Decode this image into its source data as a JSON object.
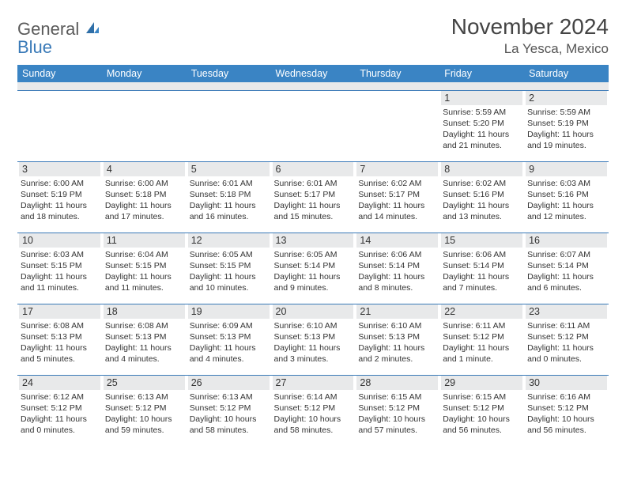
{
  "brand": {
    "word1": "General",
    "word2": "Blue"
  },
  "title": "November 2024",
  "location": "La Yesca, Mexico",
  "colors": {
    "header_bg": "#3a84c4",
    "header_fg": "#ffffff",
    "rule": "#3a7ab8",
    "daynum_bg": "#e8e9ea",
    "text": "#333333",
    "brand_gray": "#5a5a5a",
    "brand_blue": "#3a7ab8"
  },
  "day_names": [
    "Sunday",
    "Monday",
    "Tuesday",
    "Wednesday",
    "Thursday",
    "Friday",
    "Saturday"
  ],
  "weeks": [
    [
      null,
      null,
      null,
      null,
      null,
      {
        "n": "1",
        "sr": "Sunrise: 5:59 AM",
        "ss": "Sunset: 5:20 PM",
        "dl": "Daylight: 11 hours and 21 minutes."
      },
      {
        "n": "2",
        "sr": "Sunrise: 5:59 AM",
        "ss": "Sunset: 5:19 PM",
        "dl": "Daylight: 11 hours and 19 minutes."
      }
    ],
    [
      {
        "n": "3",
        "sr": "Sunrise: 6:00 AM",
        "ss": "Sunset: 5:19 PM",
        "dl": "Daylight: 11 hours and 18 minutes."
      },
      {
        "n": "4",
        "sr": "Sunrise: 6:00 AM",
        "ss": "Sunset: 5:18 PM",
        "dl": "Daylight: 11 hours and 17 minutes."
      },
      {
        "n": "5",
        "sr": "Sunrise: 6:01 AM",
        "ss": "Sunset: 5:18 PM",
        "dl": "Daylight: 11 hours and 16 minutes."
      },
      {
        "n": "6",
        "sr": "Sunrise: 6:01 AM",
        "ss": "Sunset: 5:17 PM",
        "dl": "Daylight: 11 hours and 15 minutes."
      },
      {
        "n": "7",
        "sr": "Sunrise: 6:02 AM",
        "ss": "Sunset: 5:17 PM",
        "dl": "Daylight: 11 hours and 14 minutes."
      },
      {
        "n": "8",
        "sr": "Sunrise: 6:02 AM",
        "ss": "Sunset: 5:16 PM",
        "dl": "Daylight: 11 hours and 13 minutes."
      },
      {
        "n": "9",
        "sr": "Sunrise: 6:03 AM",
        "ss": "Sunset: 5:16 PM",
        "dl": "Daylight: 11 hours and 12 minutes."
      }
    ],
    [
      {
        "n": "10",
        "sr": "Sunrise: 6:03 AM",
        "ss": "Sunset: 5:15 PM",
        "dl": "Daylight: 11 hours and 11 minutes."
      },
      {
        "n": "11",
        "sr": "Sunrise: 6:04 AM",
        "ss": "Sunset: 5:15 PM",
        "dl": "Daylight: 11 hours and 11 minutes."
      },
      {
        "n": "12",
        "sr": "Sunrise: 6:05 AM",
        "ss": "Sunset: 5:15 PM",
        "dl": "Daylight: 11 hours and 10 minutes."
      },
      {
        "n": "13",
        "sr": "Sunrise: 6:05 AM",
        "ss": "Sunset: 5:14 PM",
        "dl": "Daylight: 11 hours and 9 minutes."
      },
      {
        "n": "14",
        "sr": "Sunrise: 6:06 AM",
        "ss": "Sunset: 5:14 PM",
        "dl": "Daylight: 11 hours and 8 minutes."
      },
      {
        "n": "15",
        "sr": "Sunrise: 6:06 AM",
        "ss": "Sunset: 5:14 PM",
        "dl": "Daylight: 11 hours and 7 minutes."
      },
      {
        "n": "16",
        "sr": "Sunrise: 6:07 AM",
        "ss": "Sunset: 5:14 PM",
        "dl": "Daylight: 11 hours and 6 minutes."
      }
    ],
    [
      {
        "n": "17",
        "sr": "Sunrise: 6:08 AM",
        "ss": "Sunset: 5:13 PM",
        "dl": "Daylight: 11 hours and 5 minutes."
      },
      {
        "n": "18",
        "sr": "Sunrise: 6:08 AM",
        "ss": "Sunset: 5:13 PM",
        "dl": "Daylight: 11 hours and 4 minutes."
      },
      {
        "n": "19",
        "sr": "Sunrise: 6:09 AM",
        "ss": "Sunset: 5:13 PM",
        "dl": "Daylight: 11 hours and 4 minutes."
      },
      {
        "n": "20",
        "sr": "Sunrise: 6:10 AM",
        "ss": "Sunset: 5:13 PM",
        "dl": "Daylight: 11 hours and 3 minutes."
      },
      {
        "n": "21",
        "sr": "Sunrise: 6:10 AM",
        "ss": "Sunset: 5:13 PM",
        "dl": "Daylight: 11 hours and 2 minutes."
      },
      {
        "n": "22",
        "sr": "Sunrise: 6:11 AM",
        "ss": "Sunset: 5:12 PM",
        "dl": "Daylight: 11 hours and 1 minute."
      },
      {
        "n": "23",
        "sr": "Sunrise: 6:11 AM",
        "ss": "Sunset: 5:12 PM",
        "dl": "Daylight: 11 hours and 0 minutes."
      }
    ],
    [
      {
        "n": "24",
        "sr": "Sunrise: 6:12 AM",
        "ss": "Sunset: 5:12 PM",
        "dl": "Daylight: 11 hours and 0 minutes."
      },
      {
        "n": "25",
        "sr": "Sunrise: 6:13 AM",
        "ss": "Sunset: 5:12 PM",
        "dl": "Daylight: 10 hours and 59 minutes."
      },
      {
        "n": "26",
        "sr": "Sunrise: 6:13 AM",
        "ss": "Sunset: 5:12 PM",
        "dl": "Daylight: 10 hours and 58 minutes."
      },
      {
        "n": "27",
        "sr": "Sunrise: 6:14 AM",
        "ss": "Sunset: 5:12 PM",
        "dl": "Daylight: 10 hours and 58 minutes."
      },
      {
        "n": "28",
        "sr": "Sunrise: 6:15 AM",
        "ss": "Sunset: 5:12 PM",
        "dl": "Daylight: 10 hours and 57 minutes."
      },
      {
        "n": "29",
        "sr": "Sunrise: 6:15 AM",
        "ss": "Sunset: 5:12 PM",
        "dl": "Daylight: 10 hours and 56 minutes."
      },
      {
        "n": "30",
        "sr": "Sunrise: 6:16 AM",
        "ss": "Sunset: 5:12 PM",
        "dl": "Daylight: 10 hours and 56 minutes."
      }
    ]
  ]
}
